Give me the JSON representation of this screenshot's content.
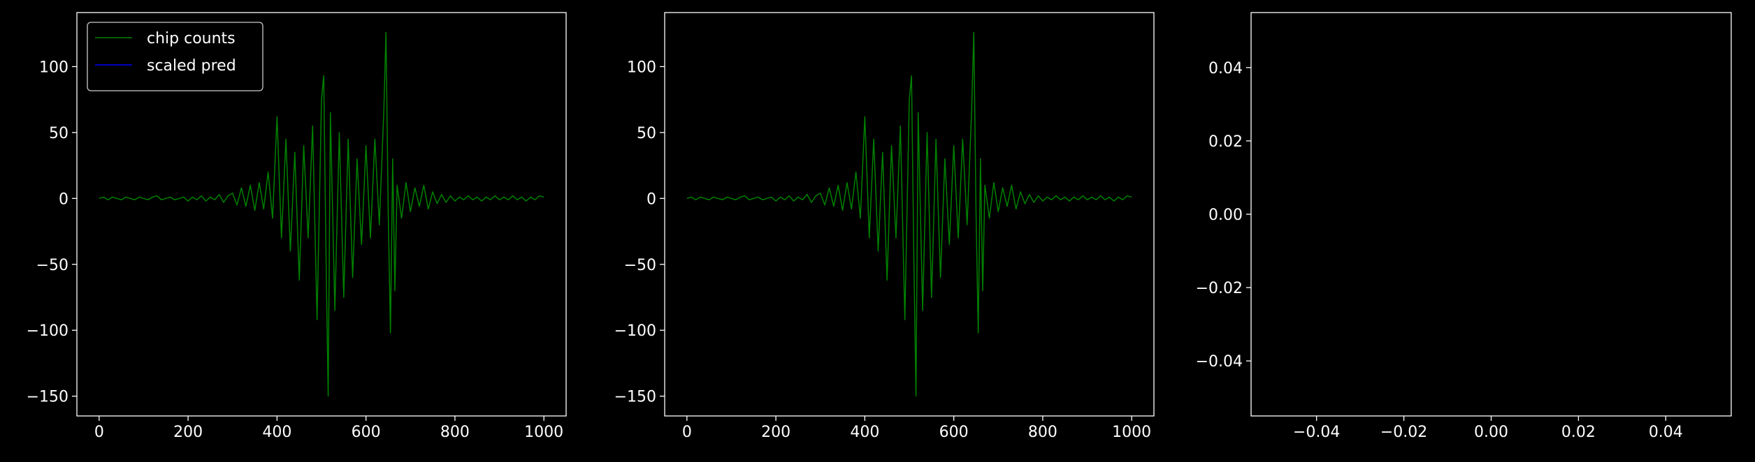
{
  "chart_data": [
    {
      "type": "line",
      "xlim": [
        -50,
        1050
      ],
      "ylim": [
        -165,
        141
      ],
      "xticks": [
        0,
        200,
        400,
        600,
        800,
        1000
      ],
      "yticks": [
        {
          "value": -150,
          "label": "−150"
        },
        {
          "value": -100,
          "label": "−100"
        },
        {
          "value": -50,
          "label": "−50"
        },
        0,
        50,
        100
      ],
      "legend": "upper left",
      "series": [
        {
          "name": "chip counts",
          "color": "#008000",
          "x": [
            0,
            10,
            20,
            30,
            40,
            50,
            60,
            70,
            80,
            90,
            100,
            110,
            120,
            130,
            140,
            150,
            160,
            170,
            180,
            190,
            200,
            210,
            220,
            230,
            240,
            250,
            260,
            270,
            280,
            290,
            300,
            310,
            320,
            330,
            340,
            350,
            360,
            370,
            380,
            390,
            400,
            410,
            420,
            430,
            440,
            450,
            460,
            470,
            480,
            490,
            500,
            505,
            510,
            515,
            520,
            530,
            540,
            550,
            560,
            570,
            580,
            590,
            600,
            610,
            620,
            630,
            640,
            645,
            650,
            655,
            660,
            665,
            670,
            680,
            690,
            700,
            710,
            720,
            730,
            740,
            750,
            760,
            770,
            780,
            790,
            800,
            810,
            820,
            830,
            840,
            850,
            860,
            870,
            880,
            890,
            900,
            910,
            920,
            930,
            940,
            950,
            960,
            970,
            980,
            990,
            1000
          ],
          "values": [
            0,
            1,
            -1,
            1,
            0,
            -1,
            1,
            0,
            -1,
            1,
            0,
            -1,
            1,
            2,
            -1,
            0,
            1,
            -1,
            0,
            1,
            -2,
            1,
            -1,
            2,
            -2,
            1,
            -1,
            3,
            -3,
            2,
            4,
            -5,
            8,
            -6,
            10,
            -9,
            12,
            -8,
            20,
            -15,
            62,
            -30,
            45,
            -40,
            35,
            -62,
            40,
            -30,
            55,
            -92,
            75,
            93,
            -40,
            -150,
            65,
            -85,
            50,
            -75,
            45,
            -60,
            30,
            -35,
            40,
            -30,
            45,
            -20,
            65,
            126,
            -10,
            -102,
            30,
            -70,
            10,
            -15,
            12,
            -10,
            8,
            -6,
            10,
            -8,
            5,
            -4,
            3,
            -3,
            2,
            -2,
            1,
            -1,
            2,
            -1,
            1,
            -2,
            1,
            -1,
            2,
            -1,
            1,
            -1,
            2,
            -1,
            1,
            -2,
            1,
            -1,
            2,
            1
          ]
        },
        {
          "name": "scaled pred",
          "color": "#0000ff",
          "x": [],
          "values": []
        }
      ]
    },
    {
      "type": "line",
      "xlim": [
        -50,
        1050
      ],
      "ylim": [
        -165,
        141
      ],
      "xticks": [
        0,
        200,
        400,
        600,
        800,
        1000
      ],
      "yticks": [
        {
          "value": -150,
          "label": "−150"
        },
        {
          "value": -100,
          "label": "−100"
        },
        {
          "value": -50,
          "label": "−50"
        },
        0,
        50,
        100
      ],
      "series": [
        {
          "color": "#008000",
          "x": [
            0,
            10,
            20,
            30,
            40,
            50,
            60,
            70,
            80,
            90,
            100,
            110,
            120,
            130,
            140,
            150,
            160,
            170,
            180,
            190,
            200,
            210,
            220,
            230,
            240,
            250,
            260,
            270,
            280,
            290,
            300,
            310,
            320,
            330,
            340,
            350,
            360,
            370,
            380,
            390,
            400,
            410,
            420,
            430,
            440,
            450,
            460,
            470,
            480,
            490,
            500,
            505,
            510,
            515,
            520,
            530,
            540,
            550,
            560,
            570,
            580,
            590,
            600,
            610,
            620,
            630,
            640,
            645,
            650,
            655,
            660,
            665,
            670,
            680,
            690,
            700,
            710,
            720,
            730,
            740,
            750,
            760,
            770,
            780,
            790,
            800,
            810,
            820,
            830,
            840,
            850,
            860,
            870,
            880,
            890,
            900,
            910,
            920,
            930,
            940,
            950,
            960,
            970,
            980,
            990,
            1000
          ],
          "values": [
            0,
            1,
            -1,
            1,
            0,
            -1,
            1,
            0,
            -1,
            1,
            0,
            -1,
            1,
            2,
            -1,
            0,
            1,
            -1,
            0,
            1,
            -2,
            1,
            -1,
            2,
            -2,
            1,
            -1,
            3,
            -3,
            2,
            4,
            -5,
            8,
            -6,
            10,
            -9,
            12,
            -8,
            20,
            -15,
            62,
            -30,
            45,
            -40,
            35,
            -62,
            40,
            -30,
            55,
            -92,
            75,
            93,
            -40,
            -150,
            65,
            -85,
            50,
            -75,
            45,
            -60,
            30,
            -35,
            40,
            -30,
            45,
            -20,
            65,
            126,
            -10,
            -102,
            30,
            -70,
            10,
            -15,
            12,
            -10,
            8,
            -6,
            10,
            -8,
            5,
            -4,
            3,
            -3,
            2,
            -2,
            1,
            -1,
            2,
            -1,
            1,
            -2,
            1,
            -1,
            2,
            -1,
            1,
            -1,
            2,
            -1,
            1,
            -2,
            1,
            -1,
            2,
            1
          ]
        }
      ]
    },
    {
      "type": "line",
      "xlim": [
        -0.055,
        0.055
      ],
      "ylim": [
        -0.055,
        0.055
      ],
      "xticks": [
        {
          "value": -0.04,
          "label": "−0.04"
        },
        {
          "value": -0.02,
          "label": "−0.02"
        },
        {
          "value": 0,
          "label": "0.00"
        },
        0.02,
        0.04
      ],
      "yticks": [
        {
          "value": -0.04,
          "label": "−0.04"
        },
        {
          "value": -0.02,
          "label": "−0.02"
        },
        {
          "value": 0,
          "label": "0.00"
        },
        0.02,
        0.04
      ],
      "series": []
    }
  ]
}
